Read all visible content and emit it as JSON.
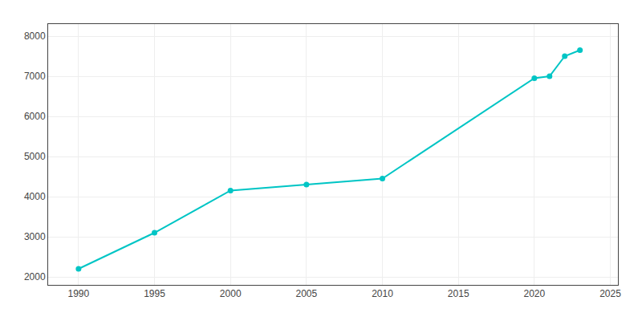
{
  "chart_data": {
    "type": "line",
    "x": [
      1990,
      1995,
      2000,
      2005,
      2010,
      2020,
      2021,
      2022,
      2023
    ],
    "values": [
      2200,
      3100,
      4150,
      4300,
      4450,
      6950,
      7000,
      7500,
      7650
    ],
    "color": "#00C5C5",
    "marker": "circle",
    "xlim": [
      1988,
      2025.5
    ],
    "ylim": [
      1800,
      8300
    ],
    "xticks": [
      1990,
      1995,
      2000,
      2005,
      2010,
      2015,
      2020,
      2025
    ],
    "yticks": [
      2000,
      3000,
      4000,
      5000,
      6000,
      7000,
      8000
    ],
    "grid": true
  }
}
